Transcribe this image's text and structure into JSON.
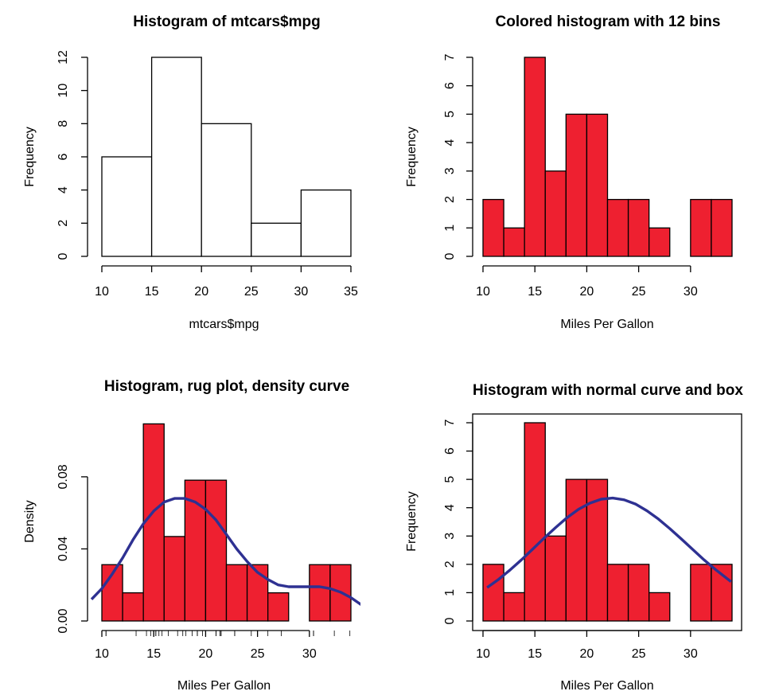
{
  "colors": {
    "fill": "#ee2030",
    "curve": "#2e3192",
    "outline": "#000000",
    "open_fill": "#ffffff"
  },
  "chart_data": [
    {
      "type": "bar",
      "title": "Histogram of mtcars$mpg",
      "xlabel": "mtcars$mpg",
      "ylabel": "Frequency",
      "bins": [
        [
          10,
          15
        ],
        [
          15,
          20
        ],
        [
          20,
          25
        ],
        [
          25,
          30
        ],
        [
          30,
          35
        ]
      ],
      "values": [
        6,
        12,
        8,
        2,
        4
      ],
      "xlim": [
        10,
        35
      ],
      "ylim": [
        0,
        12
      ],
      "xticks": [
        10,
        15,
        20,
        25,
        30,
        35
      ],
      "yticks": [
        0,
        2,
        4,
        6,
        8,
        10,
        12
      ],
      "filled": false,
      "box": false,
      "rug": false
    },
    {
      "type": "bar",
      "title": "Colored histogram with 12 bins",
      "xlabel": "Miles Per Gallon",
      "ylabel": "Frequency",
      "bins": [
        [
          10,
          12
        ],
        [
          12,
          14
        ],
        [
          14,
          16
        ],
        [
          16,
          18
        ],
        [
          18,
          20
        ],
        [
          20,
          22
        ],
        [
          22,
          24
        ],
        [
          24,
          26
        ],
        [
          26,
          28
        ],
        [
          28,
          30
        ],
        [
          30,
          32
        ],
        [
          32,
          34
        ]
      ],
      "values": [
        2,
        1,
        7,
        3,
        5,
        5,
        2,
        2,
        1,
        0,
        2,
        2
      ],
      "xlim": [
        10,
        34
      ],
      "ylim": [
        0,
        7
      ],
      "xticks": [
        10,
        15,
        20,
        25,
        30
      ],
      "yticks": [
        0,
        1,
        2,
        3,
        4,
        5,
        6,
        7
      ],
      "filled": true,
      "box": false,
      "rug": false
    },
    {
      "type": "bar",
      "title": "Histogram, rug plot, density curve",
      "xlabel": "Miles Per Gallon",
      "ylabel": "Density",
      "bins": [
        [
          10,
          12
        ],
        [
          12,
          14
        ],
        [
          14,
          16
        ],
        [
          16,
          18
        ],
        [
          18,
          20
        ],
        [
          20,
          22
        ],
        [
          22,
          24
        ],
        [
          24,
          26
        ],
        [
          26,
          28
        ],
        [
          28,
          30
        ],
        [
          30,
          32
        ],
        [
          32,
          34
        ]
      ],
      "values": [
        0.03125,
        0.015625,
        0.109375,
        0.046875,
        0.078125,
        0.078125,
        0.03125,
        0.03125,
        0.015625,
        0,
        0.03125,
        0.03125
      ],
      "xlim": [
        10,
        34
      ],
      "ylim": [
        0,
        0.11
      ],
      "xticks": [
        10,
        15,
        20,
        25,
        30
      ],
      "yticks": [
        0.0,
        0.04,
        0.08
      ],
      "ytick_labels": [
        "0.00",
        "0.04",
        "0.08"
      ],
      "filled": true,
      "box": false,
      "rug": true,
      "rug_values": [
        21.0,
        21.0,
        22.8,
        21.4,
        18.7,
        18.1,
        14.3,
        24.4,
        22.8,
        19.2,
        17.8,
        16.4,
        17.3,
        15.2,
        10.4,
        10.4,
        14.7,
        32.4,
        30.4,
        33.9,
        21.5,
        15.5,
        15.2,
        13.3,
        19.2,
        27.3,
        26.0,
        30.4,
        15.8,
        19.7,
        15.0,
        21.4
      ],
      "curve": {
        "name": "density",
        "x": [
          9,
          10,
          11,
          12,
          13,
          14,
          15,
          16,
          17,
          18,
          19,
          20,
          21,
          22,
          23,
          24,
          25,
          26,
          27,
          28,
          29,
          30,
          31,
          32,
          33,
          34,
          35
        ],
        "y": [
          0.012,
          0.018,
          0.026,
          0.035,
          0.045,
          0.054,
          0.061,
          0.066,
          0.068,
          0.068,
          0.066,
          0.062,
          0.056,
          0.048,
          0.04,
          0.033,
          0.027,
          0.023,
          0.02,
          0.019,
          0.019,
          0.019,
          0.019,
          0.018,
          0.016,
          0.013,
          0.009
        ]
      }
    },
    {
      "type": "bar",
      "title": "Histogram with normal curve and box",
      "xlabel": "Miles Per Gallon",
      "ylabel": "Frequency",
      "bins": [
        [
          10,
          12
        ],
        [
          12,
          14
        ],
        [
          14,
          16
        ],
        [
          16,
          18
        ],
        [
          18,
          20
        ],
        [
          20,
          22
        ],
        [
          22,
          24
        ],
        [
          24,
          26
        ],
        [
          26,
          28
        ],
        [
          28,
          30
        ],
        [
          30,
          32
        ],
        [
          32,
          34
        ]
      ],
      "values": [
        2,
        1,
        7,
        3,
        5,
        5,
        2,
        2,
        1,
        0,
        2,
        2
      ],
      "xlim": [
        10,
        34
      ],
      "ylim": [
        0,
        7
      ],
      "xticks": [
        10,
        15,
        20,
        25,
        30
      ],
      "yticks": [
        0,
        1,
        2,
        3,
        4,
        5,
        6,
        7
      ],
      "filled": true,
      "box": true,
      "rug": false,
      "curve": {
        "name": "normal",
        "x": [
          10.4,
          11.5,
          12.6,
          13.7,
          14.8,
          15.9,
          17,
          18.1,
          19.2,
          20.3,
          21.4,
          22.5,
          23.6,
          24.7,
          25.8,
          26.9,
          28,
          29.1,
          30.2,
          31.3,
          32.4,
          33.5,
          33.9
        ],
        "y": [
          1.18,
          1.47,
          1.8,
          2.16,
          2.54,
          2.93,
          3.3,
          3.65,
          3.94,
          4.16,
          4.3,
          4.34,
          4.28,
          4.13,
          3.89,
          3.6,
          3.26,
          2.9,
          2.53,
          2.16,
          1.82,
          1.5,
          1.39
        ]
      }
    }
  ]
}
